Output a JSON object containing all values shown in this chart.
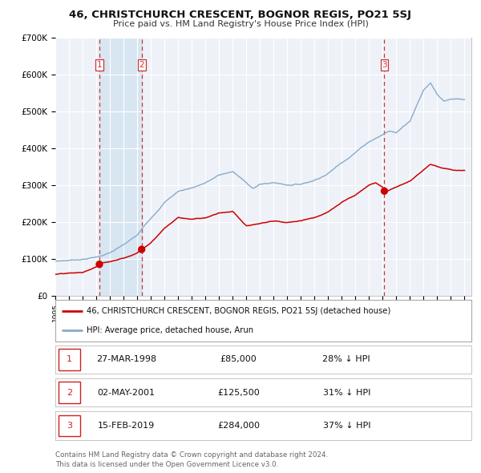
{
  "title": "46, CHRISTCHURCH CRESCENT, BOGNOR REGIS, PO21 5SJ",
  "subtitle": "Price paid vs. HM Land Registry's House Price Index (HPI)",
  "ylim": [
    0,
    700000
  ],
  "yticks": [
    0,
    100000,
    200000,
    300000,
    400000,
    500000,
    600000,
    700000
  ],
  "ytick_labels": [
    "£0",
    "£100K",
    "£200K",
    "£300K",
    "£400K",
    "£500K",
    "£600K",
    "£700K"
  ],
  "xlim_start": 1995.0,
  "xlim_end": 2025.5,
  "background_color": "#ffffff",
  "plot_bg_color": "#eef2f8",
  "grid_color": "#ffffff",
  "red_line_color": "#cc0000",
  "blue_line_color": "#88aacc",
  "vline_color": "#cc3333",
  "shade_color": "#d8e6f2",
  "transactions": [
    {
      "date": 1998.23,
      "price": 85000,
      "label": "1"
    },
    {
      "date": 2001.33,
      "price": 125500,
      "label": "2"
    },
    {
      "date": 2019.12,
      "price": 284000,
      "label": "3"
    }
  ],
  "legend_entries": [
    "46, CHRISTCHURCH CRESCENT, BOGNOR REGIS, PO21 5SJ (detached house)",
    "HPI: Average price, detached house, Arun"
  ],
  "table_rows": [
    {
      "num": "1",
      "date": "27-MAR-1998",
      "price": "£85,000",
      "hpi": "28% ↓ HPI"
    },
    {
      "num": "2",
      "date": "02-MAY-2001",
      "price": "£125,500",
      "hpi": "31% ↓ HPI"
    },
    {
      "num": "3",
      "date": "15-FEB-2019",
      "price": "£284,000",
      "hpi": "37% ↓ HPI"
    }
  ],
  "footer": "Contains HM Land Registry data © Crown copyright and database right 2024.\nThis data is licensed under the Open Government Licence v3.0."
}
